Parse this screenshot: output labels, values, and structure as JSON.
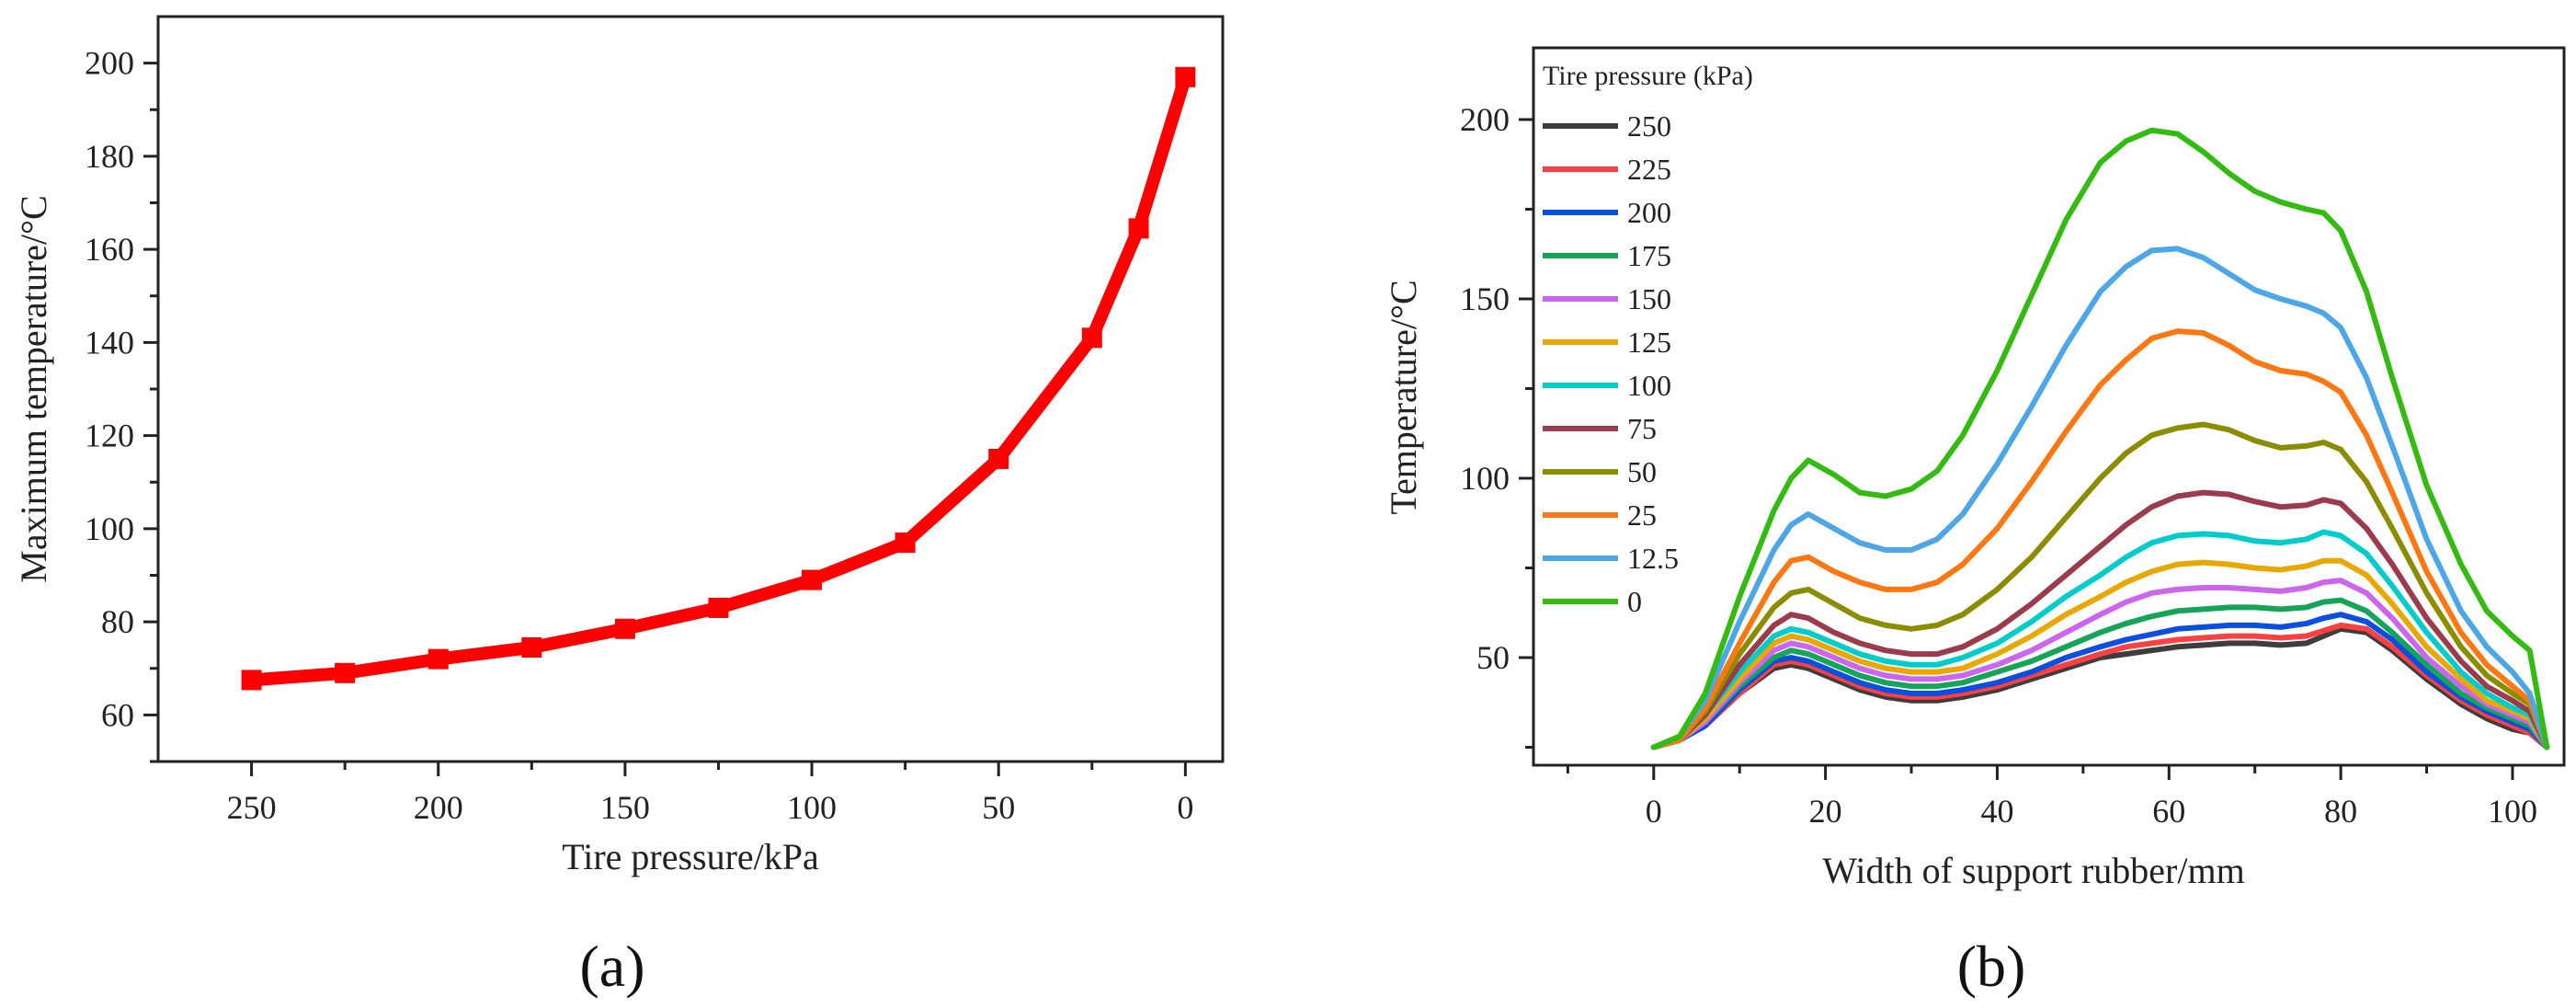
{
  "chart_data": [
    {
      "panel_label": "(a)",
      "type": "line",
      "xlabel": "Tire pressure/kPa",
      "ylabel": "Maximum temperature/°C",
      "xlim": [
        275,
        -10
      ],
      "ylim": [
        50,
        210
      ],
      "xticks": [
        250,
        200,
        150,
        100,
        50,
        0
      ],
      "yticks": [
        60,
        80,
        100,
        120,
        140,
        160,
        180,
        200
      ],
      "color": "#ff0000",
      "x": [
        250,
        225,
        200,
        175,
        150,
        125,
        100,
        75,
        50,
        25,
        12.5,
        0
      ],
      "y": [
        67.5,
        69,
        72,
        74.5,
        78.5,
        83,
        89,
        97,
        115,
        141,
        164.5,
        197
      ]
    },
    {
      "panel_label": "(b)",
      "type": "line",
      "xlabel": "Width of support rubber/mm",
      "ylabel": "Temperature/°C",
      "xlim": [
        -14,
        106
      ],
      "ylim": [
        20,
        220
      ],
      "xticks": [
        0,
        20,
        40,
        60,
        80,
        100
      ],
      "yticks": [
        50,
        100,
        150,
        200
      ],
      "legend_title": "Tire pressure (kPa)",
      "legend_position": "top-left",
      "x": [
        0,
        3,
        6,
        10,
        14,
        16,
        18,
        21,
        24,
        27,
        30,
        33,
        36,
        40,
        44,
        48,
        52,
        55,
        58,
        61,
        64,
        67,
        70,
        73,
        76,
        78,
        80,
        83,
        86,
        90,
        94,
        97,
        100,
        102,
        104
      ],
      "series": [
        {
          "name": "250",
          "color": "#3d3d3d",
          "values": [
            25,
            27,
            31,
            40,
            47,
            48,
            47,
            44,
            41,
            39,
            38,
            38,
            39,
            41,
            44,
            47,
            50,
            51,
            52,
            53,
            53.5,
            54,
            54,
            53.5,
            54,
            56,
            58,
            57,
            52,
            44,
            37,
            33,
            30,
            29,
            25
          ]
        },
        {
          "name": "225",
          "color": "#ff4040",
          "values": [
            25,
            27,
            31,
            40,
            48,
            49,
            48,
            45,
            42,
            40,
            39,
            39,
            40,
            42,
            45,
            48,
            51,
            53,
            54,
            55,
            55.5,
            56,
            56,
            55.5,
            56,
            57.5,
            59,
            58,
            53,
            45,
            38,
            34,
            31,
            29,
            25
          ]
        },
        {
          "name": "200",
          "color": "#0a4fe0",
          "values": [
            25,
            27,
            31,
            41,
            49,
            50,
            49,
            46,
            43,
            41,
            40,
            40,
            41,
            43,
            46,
            50,
            53,
            55,
            56.5,
            58,
            58.5,
            59,
            59,
            58.5,
            59.5,
            61,
            62,
            60,
            55,
            46,
            39,
            35,
            32,
            30,
            25
          ]
        },
        {
          "name": "175",
          "color": "#16a35a",
          "values": [
            25,
            27,
            32,
            42,
            50,
            52,
            51,
            48,
            45,
            43,
            42,
            42,
            43,
            46,
            49,
            53,
            57,
            59.5,
            61.5,
            63,
            63.5,
            64,
            64,
            63.5,
            64,
            65.5,
            66,
            63,
            57,
            48,
            40,
            36,
            33,
            31,
            25
          ]
        },
        {
          "name": "150",
          "color": "#cc66ee",
          "values": [
            25,
            27,
            32,
            43,
            52,
            54,
            53,
            50,
            47,
            45,
            44,
            44,
            45,
            48,
            52,
            57,
            62,
            65.5,
            68,
            69,
            69.5,
            69.5,
            69,
            68.5,
            69.5,
            71,
            71.5,
            68,
            61,
            50,
            42,
            37,
            34,
            32,
            25
          ]
        },
        {
          "name": "125",
          "color": "#e8a800",
          "values": [
            25,
            27,
            33,
            44,
            54,
            56,
            55,
            52,
            49,
            47,
            46,
            46,
            47,
            51,
            56,
            62,
            67,
            71,
            74,
            76,
            76.5,
            76,
            75,
            74.5,
            75.5,
            77,
            77,
            73,
            65,
            53,
            44,
            38,
            35,
            33,
            25
          ]
        },
        {
          "name": "100",
          "color": "#00cccc",
          "values": [
            25,
            27,
            34,
            46,
            56,
            58,
            57,
            54,
            51,
            49,
            48,
            48,
            50,
            54,
            60,
            67,
            73,
            78,
            82,
            84,
            84.5,
            84,
            82.5,
            82,
            83,
            85,
            84,
            79,
            70,
            57,
            46,
            40,
            36,
            34,
            25
          ]
        },
        {
          "name": "75",
          "color": "#9c3b4b",
          "values": [
            25,
            27,
            34,
            48,
            59,
            62,
            61,
            57,
            54,
            52,
            51,
            51,
            53,
            58,
            65,
            73,
            81,
            87,
            92,
            95,
            96,
            95.5,
            93.5,
            92,
            92.5,
            94,
            93,
            86,
            76,
            61,
            49,
            42,
            38,
            35,
            25
          ]
        },
        {
          "name": "50",
          "color": "#8c8c00",
          "values": [
            25,
            27,
            35,
            51,
            64,
            68,
            69,
            65,
            61,
            59,
            58,
            59,
            62,
            69,
            78,
            89,
            100,
            107,
            112,
            114,
            115,
            113.5,
            110.5,
            108.5,
            109,
            110,
            108,
            99,
            86,
            68,
            53,
            45,
            40,
            37,
            25
          ]
        },
        {
          "name": "25",
          "color": "#ff7711",
          "values": [
            25,
            27,
            36,
            54,
            71,
            77,
            78,
            74,
            71,
            69,
            69,
            71,
            76,
            86,
            99,
            113,
            126,
            133,
            139,
            141,
            140.5,
            137,
            132.5,
            130,
            129,
            127,
            124,
            112,
            96,
            74,
            57,
            48,
            42,
            38,
            25
          ]
        },
        {
          "name": "12.5",
          "color": "#4da6e6",
          "values": [
            25,
            28,
            38,
            60,
            80,
            87,
            90,
            86,
            82,
            80,
            80,
            83,
            90,
            104,
            120,
            137,
            152,
            159,
            163.5,
            164,
            161.5,
            157,
            152.5,
            150,
            148,
            146,
            142,
            128,
            109,
            83,
            63,
            53,
            46,
            40,
            25
          ]
        },
        {
          "name": "0",
          "color": "#33bb11",
          "values": [
            25,
            28,
            40,
            67,
            91,
            100,
            105,
            101,
            96,
            95,
            97,
            102,
            112,
            130,
            151,
            172,
            188,
            194,
            197,
            196,
            191,
            185,
            180,
            177,
            175,
            174,
            169,
            152,
            128,
            98,
            76,
            63,
            56,
            52,
            25
          ]
        }
      ]
    }
  ]
}
